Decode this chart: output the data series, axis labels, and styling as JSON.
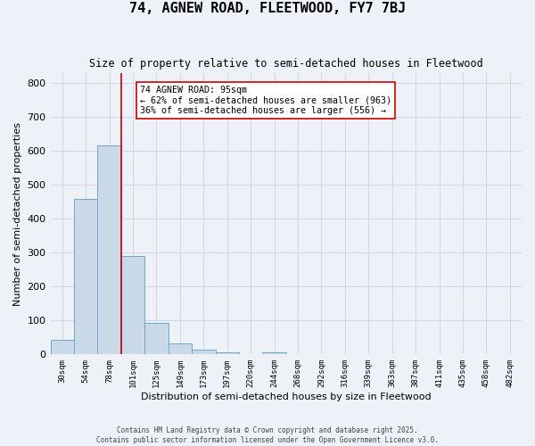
{
  "title1": "74, AGNEW ROAD, FLEETWOOD, FY7 7BJ",
  "title2": "Size of property relative to semi-detached houses in Fleetwood",
  "xlabel": "Distribution of semi-detached houses by size in Fleetwood",
  "ylabel": "Number of semi-detached properties",
  "bar_values": [
    44,
    459,
    617,
    290,
    93,
    33,
    13,
    7,
    0,
    7,
    0,
    0,
    0,
    0,
    0,
    0,
    0,
    0,
    0,
    0
  ],
  "bin_labels": [
    "30sqm",
    "54sqm",
    "78sqm",
    "101sqm",
    "125sqm",
    "149sqm",
    "173sqm",
    "197sqm",
    "220sqm",
    "244sqm",
    "268sqm",
    "292sqm",
    "316sqm",
    "339sqm",
    "363sqm",
    "387sqm",
    "411sqm",
    "435sqm",
    "458sqm",
    "482sqm"
  ],
  "bar_color": "#c9d9e8",
  "bar_edge_color": "#6fa8c9",
  "grid_color": "#d0d8e8",
  "background_color": "#eef2f8",
  "annotation_text": "74 AGNEW ROAD: 95sqm\n← 62% of semi-detached houses are smaller (963)\n36% of semi-detached houses are larger (556) →",
  "vline_x": 2.5,
  "vline_color": "#cc0000",
  "annotation_box_color": "#ffffff",
  "annotation_box_edge": "#cc0000",
  "ylim": [
    0,
    830
  ],
  "yticks": [
    0,
    100,
    200,
    300,
    400,
    500,
    600,
    700,
    800
  ],
  "footer1": "Contains HM Land Registry data © Crown copyright and database right 2025.",
  "footer2": "Contains public sector information licensed under the Open Government Licence v3.0."
}
